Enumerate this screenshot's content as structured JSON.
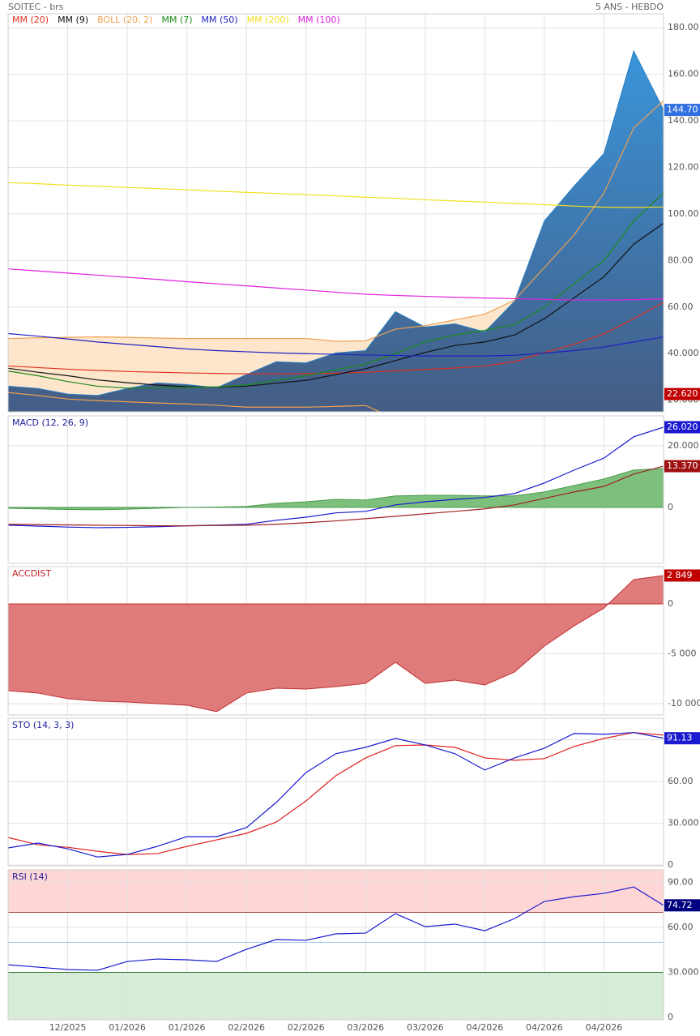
{
  "chart_data": [
    {
      "type": "line",
      "title": "SOITEC - brs",
      "subtitle": "5 ANS - HEBDO",
      "title_color": "#666",
      "price": {
        "color": "#2a7fc4",
        "values": [
          26,
          25,
          22.6,
          22,
          25,
          27.4,
          26.7,
          25.3,
          31,
          36.5,
          36,
          40.3,
          41.3,
          58,
          51.4,
          52.8,
          49.3,
          62.5,
          97,
          112,
          126,
          170,
          144.7
        ]
      },
      "series": [
        {
          "name": "MM (20)",
          "color": "#e03020",
          "values": [
            34.7,
            34,
            33.3,
            32.8,
            32.3,
            32,
            31.7,
            31.5,
            31.3,
            31.3,
            31.4,
            31.6,
            32,
            32.6,
            33.2,
            33.8,
            34.7,
            36.5,
            40.5,
            44,
            48.5,
            55,
            62
          ]
        },
        {
          "name": "MM (9)",
          "color": "#111111",
          "values": [
            33.7,
            32,
            30.5,
            28.7,
            27.5,
            26.5,
            25.8,
            25.6,
            26,
            27.3,
            28.5,
            31,
            33.5,
            37,
            40.5,
            43.5,
            45,
            48,
            55,
            64,
            73,
            87,
            96
          ]
        },
        {
          "name": "BOLL (20, 2)",
          "color": "#f0a050",
          "band_color": "#fde6cc",
          "values": [
            46.5,
            46.8,
            47,
            47.2,
            47,
            46.7,
            46.5,
            46.5,
            46.5,
            46.5,
            46.5,
            45.3,
            45.5,
            50.5,
            52,
            54.5,
            57,
            63,
            77,
            91,
            109,
            137,
            148.6
          ],
          "lower": [
            23.3,
            22,
            20.5,
            19.8,
            19.3,
            18.8,
            18.4,
            17.8,
            17,
            17,
            17,
            17.3,
            17.7,
            12,
            8,
            6,
            6,
            3,
            -5,
            -12,
            -20,
            -30,
            -25
          ]
        },
        {
          "name": "MM (7)",
          "color": "#1a8a1a",
          "values": [
            32.5,
            30.5,
            28,
            26,
            25.2,
            25.3,
            25.5,
            25.7,
            26.5,
            28.5,
            30.5,
            33,
            35.5,
            40,
            45,
            48,
            50,
            52.5,
            60,
            70,
            80,
            97,
            109
          ]
        },
        {
          "name": "MM (50)",
          "color": "#2020c0",
          "values": [
            48.6,
            47.5,
            46.3,
            45,
            44,
            43,
            42,
            41.3,
            40.8,
            40.3,
            40,
            39.7,
            39.4,
            39.2,
            39,
            39,
            39,
            39.3,
            40.2,
            41.3,
            42.8,
            45,
            47.2
          ]
        },
        {
          "name": "MM (200)",
          "color": "#f0e020",
          "values": [
            113.5,
            113,
            112.4,
            111.9,
            111.4,
            110.9,
            110.4,
            109.8,
            109.3,
            108.8,
            108.3,
            107.8,
            107.2,
            106.7,
            106.1,
            105.6,
            105.1,
            104.5,
            104,
            103.4,
            102.9,
            102.8,
            103
          ]
        },
        {
          "name": "MM (100)",
          "color": "#e020e0",
          "values": [
            76.4,
            75.5,
            74.6,
            73.7,
            72.8,
            71.9,
            70.9,
            70,
            69.1,
            68.2,
            67.3,
            66.4,
            65.5,
            65,
            64.6,
            64.2,
            63.9,
            63.6,
            63.3,
            63,
            63,
            63.2,
            63.5
          ]
        }
      ],
      "ylim": [
        15,
        186
      ],
      "yticks": [
        {
          "value": 20,
          "label": "20.000"
        },
        {
          "value": 40,
          "label": "40.000"
        },
        {
          "value": 60,
          "label": "60.00"
        },
        {
          "value": 80,
          "label": "80.00"
        },
        {
          "value": 100,
          "label": "100.00"
        },
        {
          "value": 120,
          "label": "120.00"
        },
        {
          "value": 140,
          "label": "140.00"
        },
        {
          "value": 160,
          "label": "160.00"
        },
        {
          "value": 180,
          "label": "180.00"
        }
      ],
      "markers": [
        {
          "value": 144.7,
          "label": "144.70",
          "color": "#3070e0"
        },
        {
          "value": 22.62,
          "label": "22.620",
          "color": "#c00000"
        }
      ],
      "grid": true
    },
    {
      "type": "line",
      "title": "MACD (12, 26, 9)",
      "title_color": "#20209a",
      "histogram": {
        "color": "#7cc07c",
        "values": [
          -0.3,
          -0.5,
          -0.7,
          -0.8,
          -0.6,
          -0.3,
          0,
          0.1,
          0.3,
          1.3,
          1.8,
          2.6,
          2.4,
          3.7,
          3.9,
          3.9,
          3.7,
          3.7,
          5,
          7.1,
          9.2,
          12.1,
          12.65
        ]
      },
      "series": [
        {
          "color": "#1a1ad0",
          "values": [
            -5.8,
            -6.1,
            -6.4,
            -6.6,
            -6.5,
            -6.3,
            -6,
            -5.8,
            -5.5,
            -4.2,
            -3.2,
            -1.8,
            -1.3,
            0.8,
            1.8,
            2.6,
            3.2,
            4.5,
            7.9,
            12.1,
            16,
            22.9,
            26.02
          ]
        },
        {
          "color": "#a02020",
          "values": [
            -5.5,
            -5.6,
            -5.7,
            -5.8,
            -5.9,
            -6,
            -6,
            -5.9,
            -5.8,
            -5.5,
            -5,
            -4.4,
            -3.7,
            -2.9,
            -2.1,
            -1.3,
            -0.5,
            0.8,
            2.9,
            5,
            6.8,
            10.8,
            13.37
          ]
        }
      ],
      "ylim": [
        -18.2,
        29.7
      ],
      "yticks": [
        0,
        {
          "value": 20,
          "label": "20.000"
        }
      ],
      "markers": [
        {
          "value": 26.02,
          "label": "26.020",
          "color": "#1a1ad0"
        },
        {
          "value": 13.37,
          "label": "13.370",
          "color": "#a01010"
        }
      ],
      "grid": true
    },
    {
      "type": "area",
      "title": "ACCDIST",
      "title_color": "#c02020",
      "color": "#e07b7b",
      "line_color": "#c03030",
      "values": [
        -8700,
        -8940,
        -9500,
        -9750,
        -9840,
        -10000,
        -10160,
        -10800,
        -8940,
        -8460,
        -8540,
        -8290,
        -7970,
        -5850,
        -7970,
        -7640,
        -8130,
        -6830,
        -4230,
        -2200,
        -410,
        2440,
        2849
      ],
      "ylim": [
        -11140,
        3740
      ],
      "yticks": [
        {
          "value": -10000,
          "label": "-10 000"
        },
        {
          "value": -5000,
          "label": "-5 000"
        },
        0
      ],
      "markers": [
        {
          "value": 2849,
          "label": "2 849",
          "color": "#c00000"
        }
      ],
      "grid": true
    },
    {
      "type": "line",
      "title": "STO (14, 3, 3)",
      "title_color": "#20209a",
      "series": [
        {
          "color": "#e02020",
          "values": [
            19.8,
            14.6,
            12.8,
            9.9,
            7.6,
            8.2,
            13.4,
            18.1,
            22.8,
            30.9,
            46.1,
            64.2,
            77,
            85.8,
            86.3,
            84.6,
            77,
            75.3,
            76.5,
            85.2,
            91,
            95.2,
            93.4
          ]
        },
        {
          "color": "#1a1ad0",
          "values": [
            12.3,
            15.8,
            11.7,
            5.8,
            7.6,
            13.4,
            20.4,
            20.4,
            26.9,
            45,
            66.5,
            80,
            84.6,
            91,
            86.3,
            80,
            68.3,
            77,
            84,
            94.6,
            94,
            95.2,
            91.13
          ]
        }
      ],
      "ylim": [
        -0.5,
        105.5
      ],
      "yticks": [
        0,
        {
          "value": 30,
          "label": "30.000"
        },
        {
          "value": 60,
          "label": "60.00"
        },
        {
          "value": 90,
          "label": "90.000"
        }
      ],
      "markers": [
        {
          "value": 91.13,
          "label": "91.13",
          "color": "#1a1ad0"
        }
      ],
      "grid": true
    },
    {
      "type": "line",
      "title": "RSI (14)",
      "title_color": "#20209a",
      "zones": {
        "upper": 70,
        "lower": 30,
        "mid": 50,
        "upper_color": "#ffd6d6",
        "lower_color": "#d6ecd6"
      },
      "series": [
        {
          "color": "#1a1ad0",
          "values": [
            35.1,
            33.5,
            31.9,
            31.4,
            37.3,
            38.9,
            38.4,
            37.3,
            45.4,
            51.9,
            51.4,
            55.7,
            56.2,
            69.2,
            60.5,
            62.2,
            57.8,
            65.9,
            77.3,
            80.5,
            82.7,
            87,
            74.72
          ]
        }
      ],
      "ylim": [
        -1.6,
        98.4
      ],
      "yticks": [
        0,
        {
          "value": 30,
          "label": "30.000"
        },
        {
          "value": 60,
          "label": "60.00"
        },
        {
          "value": 90,
          "label": "90.00"
        }
      ],
      "markers": [
        {
          "value": 74.72,
          "label": "74.72",
          "color": "#000080"
        }
      ],
      "categories": [
        null,
        null,
        "12/2025",
        null,
        "01/2026",
        null,
        "01/2026",
        null,
        "02/2026",
        null,
        "02/2026",
        null,
        "03/2026",
        null,
        "03/2026",
        null,
        "04/2026",
        null,
        "04/2026",
        null,
        "04/2026",
        null,
        null
      ],
      "grid": true
    }
  ]
}
